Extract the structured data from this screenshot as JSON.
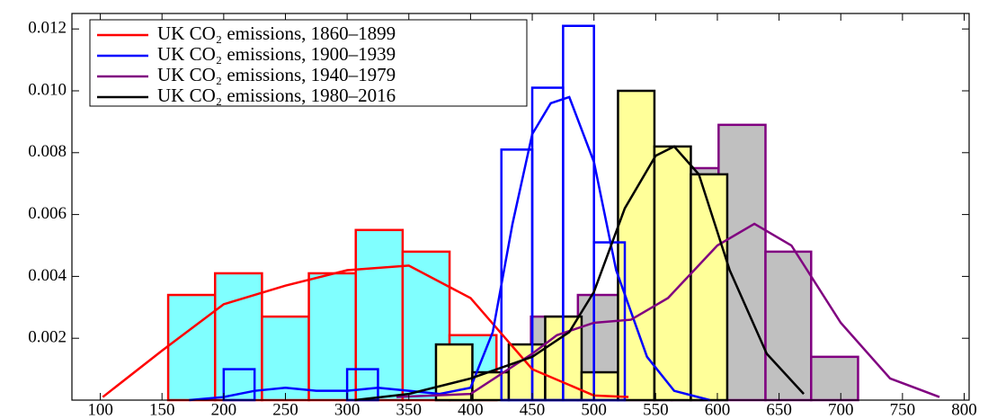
{
  "chart_data": {
    "type": "histogram",
    "xlim": [
      77,
      804
    ],
    "ylim": [
      0,
      0.0125
    ],
    "xticks": [
      100,
      150,
      200,
      250,
      300,
      350,
      400,
      450,
      500,
      550,
      600,
      650,
      700,
      750,
      800
    ],
    "yticks": [
      0.002,
      0.004,
      0.006,
      0.008,
      {
        "value": 0.01,
        "label": "0.010"
      },
      0.012
    ],
    "legend": "top-left",
    "series": [
      {
        "name": "UK CO₂ emissions, 1860–1899",
        "color": "#ff0000",
        "fill": "#80ffff",
        "bins": [
          155,
          193,
          231,
          269,
          307,
          345,
          383,
          421
        ],
        "values": [
          0.0034,
          0.0041,
          0.0027,
          0.0041,
          0.0055,
          0.0048,
          0.0021
        ],
        "kde": {
          "x": [
            102,
            150,
            200,
            250,
            300,
            350,
            400,
            450,
            500,
            528
          ],
          "values": [
            0.0001,
            0.0016,
            0.0031,
            0.0037,
            0.0042,
            0.00435,
            0.0033,
            0.001,
            0.00015,
            0.0001
          ]
        }
      },
      {
        "name": "UK CO₂ emissions, 1900–1939",
        "color": "#0000ff",
        "fill": "none",
        "bins": [
          200,
          225,
          250,
          275,
          300,
          325,
          350,
          375,
          400,
          425,
          450,
          475,
          500,
          525
        ],
        "values": [
          0.001,
          0,
          0,
          0,
          0.001,
          0,
          0,
          0,
          0,
          0.0081,
          0.0101,
          0.0121,
          0.0051
        ],
        "kde": {
          "x": [
            172,
            200,
            225,
            250,
            275,
            300,
            325,
            350,
            375,
            400,
            418,
            434,
            450,
            465,
            480,
            500,
            518,
            543,
            565,
            594
          ],
          "values": [
            0,
            0.0001,
            0.0003,
            0.0004,
            0.0003,
            0.0003,
            0.0004,
            0.0003,
            0.0002,
            0.0004,
            0.0022,
            0.0057,
            0.0086,
            0.0096,
            0.0098,
            0.0077,
            0.0042,
            0.0014,
            0.0003,
            0
          ]
        }
      },
      {
        "name": "UK CO₂ emissions, 1940–1979",
        "color": "#800080",
        "fill": "#c0c0c0",
        "bins": [
          449,
          487,
          525,
          563,
          601,
          639,
          676,
          714
        ],
        "values": [
          0.0027,
          0.0034,
          0.0068,
          0.0075,
          0.0089,
          0.0048,
          0.0014
        ],
        "kde": {
          "x": [
            340,
            400,
            450,
            470,
            500,
            530,
            560,
            600,
            630,
            660,
            700,
            740,
            780
          ],
          "values": [
            0.0001,
            0.0002,
            0.0015,
            0.0021,
            0.0025,
            0.0026,
            0.0033,
            0.005,
            0.0057,
            0.005,
            0.0025,
            0.0007,
            0.0001
          ]
        }
      },
      {
        "name": "UK CO₂ emissions, 1980–2016",
        "color": "#000000",
        "fill": "#ffff99",
        "bins": [
          372,
          401.5,
          431,
          460.5,
          490,
          519.5,
          549,
          578.5,
          608
        ],
        "values": [
          0.0018,
          0.0009,
          0.0018,
          0.0027,
          0.0009,
          0.01,
          0.0082,
          0.0073
        ],
        "kde": {
          "x": [
            306,
            350,
            400,
            450,
            480,
            500,
            525,
            550,
            565,
            585,
            610,
            640,
            670
          ],
          "values": [
            0,
            0.0002,
            0.0007,
            0.0014,
            0.0022,
            0.0035,
            0.0062,
            0.0079,
            0.0082,
            0.0073,
            0.0042,
            0.0015,
            0.0002
          ]
        }
      }
    ]
  }
}
